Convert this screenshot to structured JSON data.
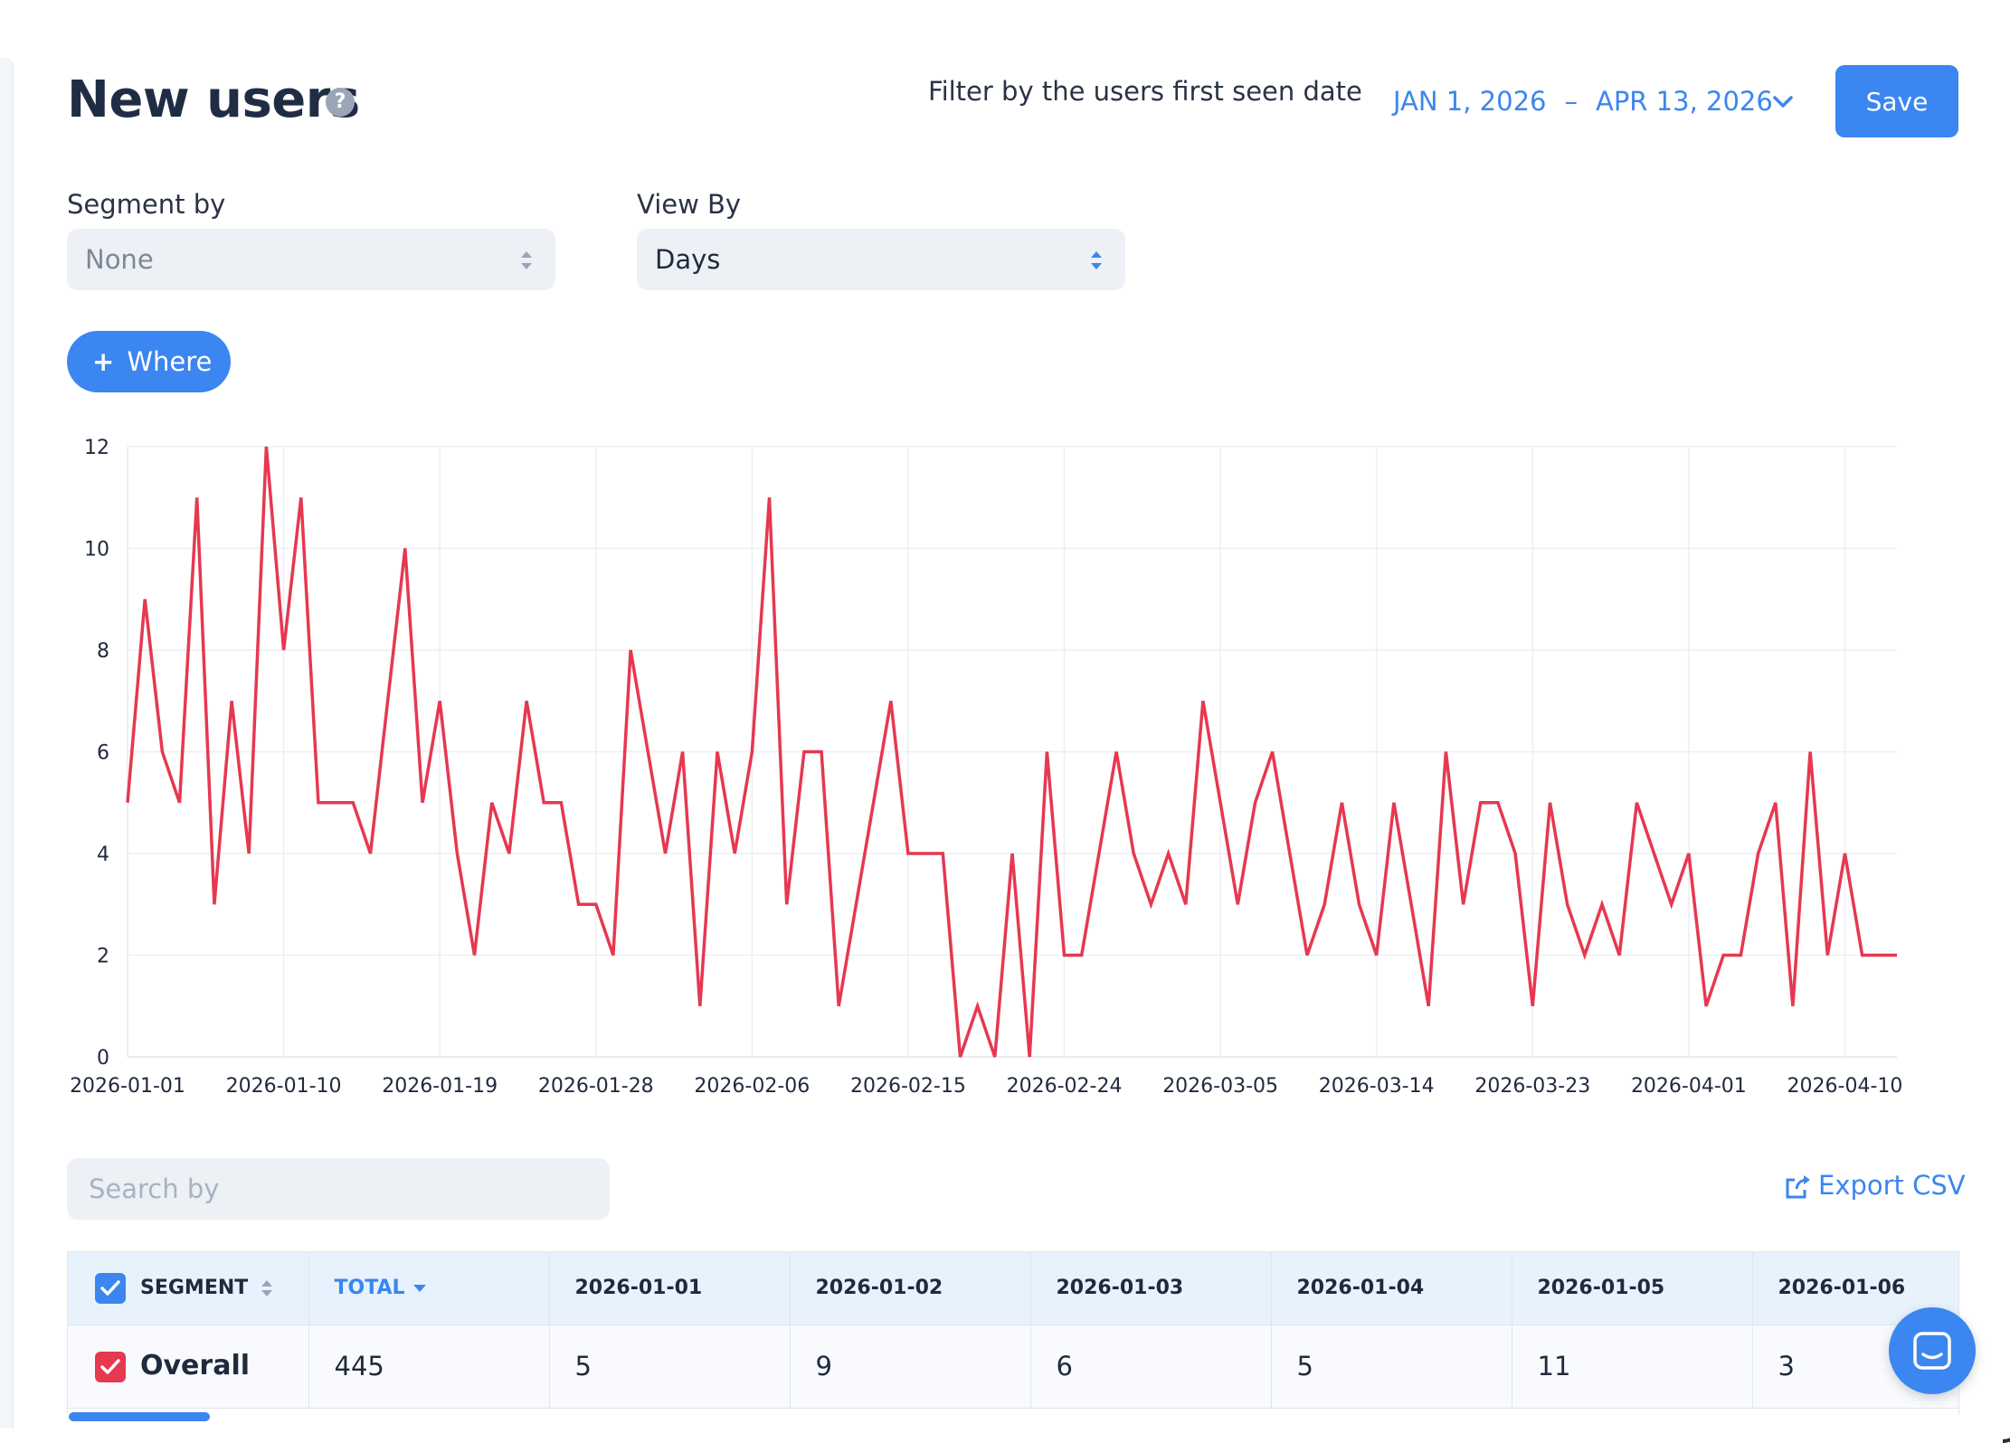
{
  "header": {
    "title": "New users",
    "help_icon": "?",
    "filter_label": "Filter by the users first seen date",
    "date_start": "JAN 1, 2026",
    "date_separator": "–",
    "date_end": "APR 13, 2026",
    "save_label": "Save"
  },
  "controls": {
    "segment_label": "Segment by",
    "segment_value": "None",
    "view_label": "View By",
    "view_value": "Days",
    "where_label": "Where",
    "where_icon": "+"
  },
  "chart_data": {
    "type": "line",
    "ylim": [
      0,
      12
    ],
    "y_ticks": [
      "0",
      "2",
      "4",
      "6",
      "8",
      "10",
      "12"
    ],
    "x_ticks": [
      "2026-01-01",
      "2026-01-10",
      "2026-01-19",
      "2026-01-28",
      "2026-02-06",
      "2026-02-15",
      "2026-02-24",
      "2026-03-05",
      "2026-03-14",
      "2026-03-23",
      "2026-04-01",
      "2026-04-10"
    ],
    "x_start": "2026-01-01",
    "x_end": "2026-04-13",
    "grid": true,
    "series": [
      {
        "color": "#e63850",
        "values": [
          5,
          9,
          6,
          5,
          11,
          3,
          7,
          4,
          12,
          8,
          11,
          5,
          5,
          5,
          4,
          7,
          10,
          5,
          7,
          4,
          2,
          5,
          4,
          7,
          5,
          5,
          3,
          3,
          2,
          8,
          6,
          4,
          6,
          1,
          6,
          4,
          6,
          11,
          3,
          6,
          6,
          1,
          3,
          5,
          7,
          4,
          4,
          4,
          0,
          1,
          0,
          4,
          0,
          6,
          2,
          2,
          4,
          6,
          4,
          3,
          4,
          3,
          7,
          5,
          3,
          5,
          6,
          4,
          2,
          3,
          5,
          3,
          2,
          5,
          3,
          1,
          6,
          3,
          5,
          5,
          4,
          1,
          5,
          3,
          2,
          3,
          2,
          5,
          4,
          3,
          4,
          1,
          2,
          2,
          4,
          5,
          1,
          6,
          2,
          4,
          2,
          2,
          2
        ]
      }
    ]
  },
  "search": {
    "placeholder": "Search by"
  },
  "export_label": "Export CSV",
  "table": {
    "segment_header": "SEGMENT",
    "total_header": "TOTAL",
    "date_headers": [
      "2026-01-01",
      "2026-01-02",
      "2026-01-03",
      "2026-01-04",
      "2026-01-05",
      "2026-01-06"
    ],
    "row": {
      "label": "Overall",
      "total": "445",
      "values": [
        "5",
        "9",
        "6",
        "5",
        "11",
        "3"
      ]
    }
  },
  "colors": {
    "accent": "#3b86f0",
    "line": "#e63850",
    "row_checkbox": "#e63850"
  },
  "icons": {
    "help": "question-circle-icon",
    "date_toggle": "chevron-down-icon",
    "select_arrows": "sort-updown-icon",
    "export": "share-export-icon",
    "chat": "chat-bubble-icon"
  }
}
